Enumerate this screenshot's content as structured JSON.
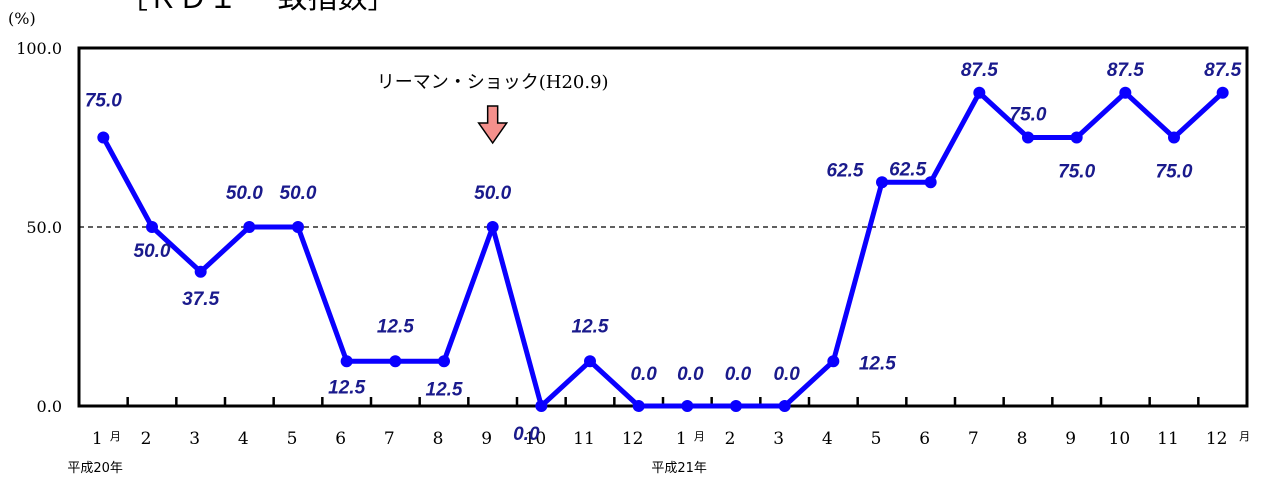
{
  "header": {
    "title": "［ＲＤＩ 一致指数］"
  },
  "chart_data": {
    "type": "line",
    "y_unit": "(%)",
    "ylim": [
      0,
      100
    ],
    "y_ticks": [
      "0.0",
      "50.0",
      "100.0"
    ],
    "reference_line": 50,
    "categories": [
      "1",
      "2",
      "3",
      "4",
      "5",
      "6",
      "7",
      "8",
      "9",
      "10",
      "11",
      "12",
      "1",
      "2",
      "3",
      "4",
      "5",
      "6",
      "7",
      "8",
      "9",
      "10",
      "11",
      "12"
    ],
    "month_suffix": "月",
    "year_labels": [
      {
        "text": "平成20年",
        "index": 0
      },
      {
        "text": "平成21年",
        "index": 12
      }
    ],
    "series": [
      {
        "values": [
          75.0,
          50.0,
          37.5,
          50.0,
          50.0,
          12.5,
          12.5,
          12.5,
          50.0,
          0.0,
          12.5,
          0.0,
          0.0,
          0.0,
          0.0,
          12.5,
          62.5,
          62.5,
          87.5,
          75.0,
          75.0,
          87.5,
          75.0,
          87.5
        ],
        "color": "#0a00ff"
      }
    ],
    "data_labels": [
      "75.0",
      "50.0",
      "37.5",
      "50.0",
      "50.0",
      "12.5",
      "12.5",
      "12.5",
      "50.0",
      "0.0",
      "12.5",
      "0.0",
      "0.0",
      "0.0",
      "0.0",
      "12.5",
      "62.5",
      "62.5",
      "87.5",
      "75.0",
      "75.0",
      "87.5",
      "75.0",
      "87.5"
    ],
    "annotation": {
      "text": "リーマン・ショック(H20.9)",
      "index": 8,
      "arrow_color": "#f4908c"
    },
    "grid": false
  }
}
